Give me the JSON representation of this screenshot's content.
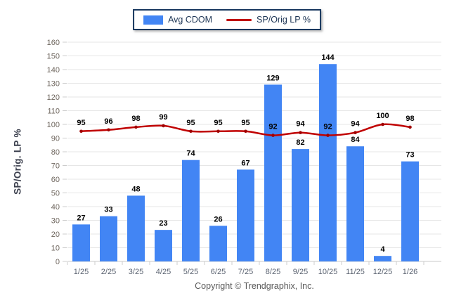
{
  "legend": {
    "items": [
      {
        "label": "Avg CDOM",
        "swatch": "bar-swatch"
      },
      {
        "label": "SP/Orig LP %",
        "swatch": "line-swatch"
      }
    ]
  },
  "chart_data": {
    "type": "bar+line",
    "categories": [
      "1/25",
      "2/25",
      "3/25",
      "4/25",
      "5/25",
      "6/25",
      "7/25",
      "8/25",
      "9/25",
      "10/25",
      "11/25",
      "12/25",
      "1/26"
    ],
    "series": [
      {
        "name": "Avg CDOM",
        "type": "bar",
        "values": [
          27,
          33,
          48,
          23,
          74,
          26,
          67,
          129,
          82,
          144,
          84,
          4,
          73
        ]
      },
      {
        "name": "SP/Orig LP %",
        "type": "line",
        "values": [
          95,
          96,
          98,
          99,
          95,
          95,
          95,
          92,
          94,
          92,
          94,
          100,
          98
        ]
      }
    ],
    "title": "",
    "xlabel": "",
    "ylabel": "SP/Orig. LP %",
    "ylim": [
      0,
      160
    ],
    "ytick_step": 10,
    "grid": true,
    "legend_position": "top-center"
  },
  "footer": {
    "copyright": "Copyright © Trendgraphix, Inc."
  },
  "colors": {
    "bar": "#4285F4",
    "line": "#C00000",
    "line_marker": "#A00000",
    "legend_border": "#17375E",
    "legend_text": "#1F3756",
    "grid": "#E6E6E6",
    "axis": "#C9C9C9",
    "tick": "#CCCCCC",
    "y_tick_label": "#6E665E",
    "x_tick_label": "#5A6270",
    "value_label": "#000000",
    "y_axis_title": "#3B3F4D",
    "copyright": "#595959"
  }
}
